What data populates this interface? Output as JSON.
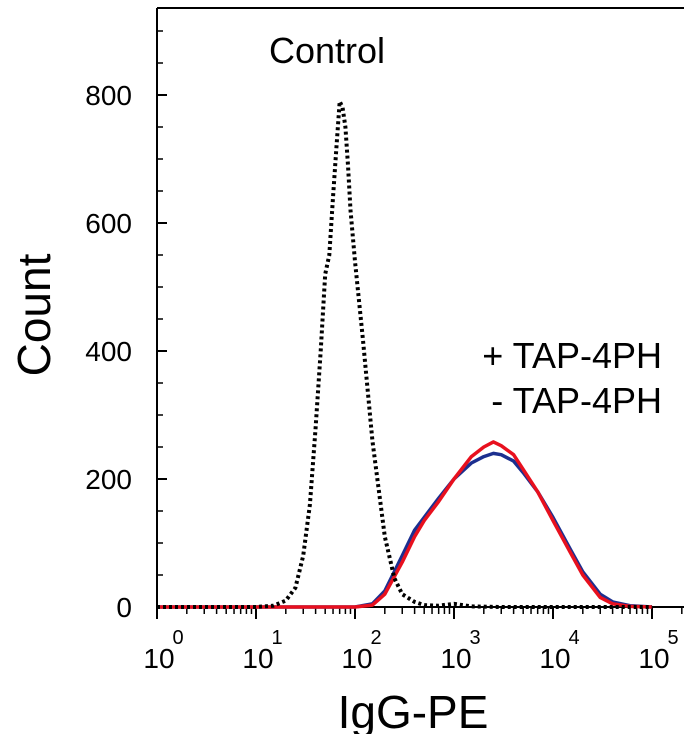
{
  "chart_data": {
    "type": "line",
    "title": "",
    "xlabel": "IgG-PE",
    "ylabel": "Count",
    "x_scale": "log",
    "xlim": [
      1,
      100000
    ],
    "ylim": [
      0,
      940
    ],
    "y_ticks": [
      0,
      200,
      400,
      600,
      800
    ],
    "y_tick_labels": [
      "0",
      "200",
      "400",
      "600",
      "800"
    ],
    "x_ticks": [
      1,
      10,
      100,
      1000,
      10000,
      100000
    ],
    "x_tick_labels": [
      {
        "base": "10",
        "exp": "0"
      },
      {
        "base": "10",
        "exp": "1"
      },
      {
        "base": "10",
        "exp": "2"
      },
      {
        "base": "10",
        "exp": "3"
      },
      {
        "base": "10",
        "exp": "4"
      },
      {
        "base": "10",
        "exp": "5"
      }
    ],
    "annotations": [
      {
        "text": "Control",
        "x": 60,
        "y": 860,
        "color": "#000000"
      }
    ],
    "legend_position": "right",
    "series": [
      {
        "name": "+ TAP-4PH",
        "color": "#1c2f8f",
        "style": "solid",
        "points": [
          [
            1,
            0
          ],
          [
            100,
            0
          ],
          [
            150,
            5
          ],
          [
            200,
            25
          ],
          [
            300,
            80
          ],
          [
            400,
            120
          ],
          [
            500,
            140
          ],
          [
            700,
            170
          ],
          [
            1000,
            200
          ],
          [
            1500,
            225
          ],
          [
            2000,
            235
          ],
          [
            2500,
            240
          ],
          [
            3000,
            238
          ],
          [
            4000,
            228
          ],
          [
            5000,
            210
          ],
          [
            7000,
            180
          ],
          [
            10000,
            140
          ],
          [
            15000,
            90
          ],
          [
            20000,
            55
          ],
          [
            30000,
            20
          ],
          [
            40000,
            8
          ],
          [
            60000,
            2
          ],
          [
            100000,
            0
          ]
        ]
      },
      {
        "name": "- TAP-4PH",
        "color": "#e8101e",
        "style": "solid",
        "points": [
          [
            1,
            0
          ],
          [
            100,
            0
          ],
          [
            150,
            3
          ],
          [
            200,
            20
          ],
          [
            300,
            70
          ],
          [
            400,
            110
          ],
          [
            500,
            135
          ],
          [
            700,
            165
          ],
          [
            1000,
            200
          ],
          [
            1500,
            235
          ],
          [
            2000,
            250
          ],
          [
            2500,
            258
          ],
          [
            3000,
            252
          ],
          [
            4000,
            238
          ],
          [
            5000,
            215
          ],
          [
            7000,
            180
          ],
          [
            10000,
            135
          ],
          [
            15000,
            85
          ],
          [
            20000,
            50
          ],
          [
            30000,
            15
          ],
          [
            40000,
            5
          ],
          [
            60000,
            1
          ],
          [
            100000,
            0
          ]
        ]
      },
      {
        "name": "Control",
        "color": "#000000",
        "style": "dotted",
        "points": [
          [
            1,
            0
          ],
          [
            10,
            0
          ],
          [
            15,
            2
          ],
          [
            20,
            10
          ],
          [
            25,
            30
          ],
          [
            30,
            80
          ],
          [
            35,
            160
          ],
          [
            40,
            280
          ],
          [
            45,
            400
          ],
          [
            50,
            520
          ],
          [
            55,
            550
          ],
          [
            60,
            640
          ],
          [
            65,
            720
          ],
          [
            70,
            790
          ],
          [
            75,
            780
          ],
          [
            80,
            750
          ],
          [
            85,
            690
          ],
          [
            90,
            620
          ],
          [
            100,
            540
          ],
          [
            120,
            420
          ],
          [
            150,
            260
          ],
          [
            200,
            110
          ],
          [
            250,
            45
          ],
          [
            300,
            20
          ],
          [
            400,
            8
          ],
          [
            500,
            3
          ],
          [
            700,
            2
          ],
          [
            1000,
            5
          ],
          [
            1500,
            1
          ],
          [
            3000,
            0
          ],
          [
            100000,
            0
          ]
        ]
      }
    ]
  }
}
